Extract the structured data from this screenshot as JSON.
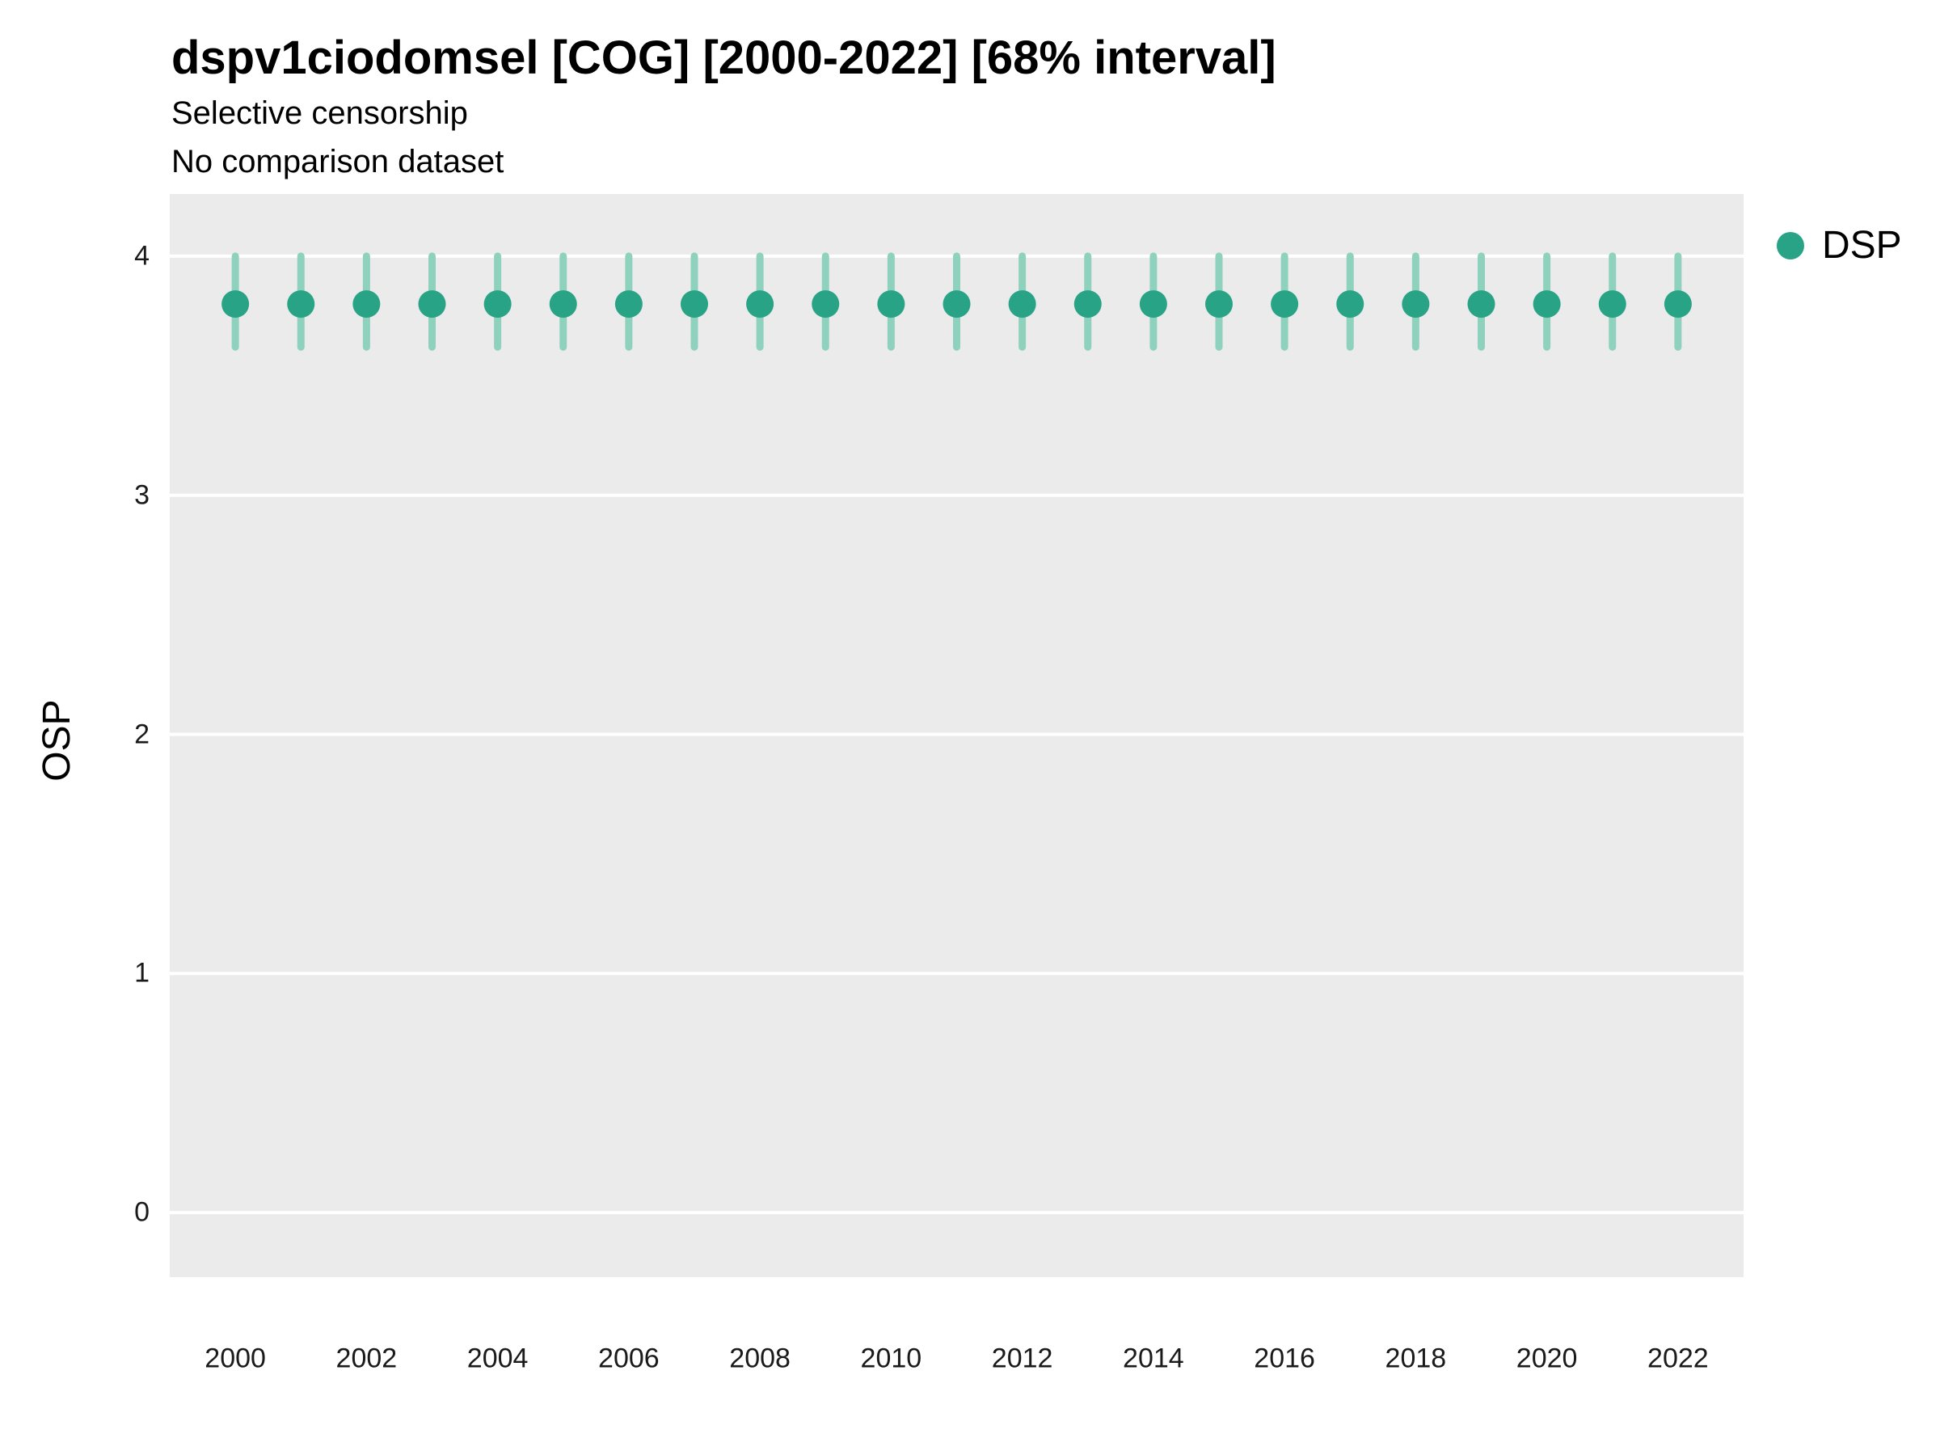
{
  "chart_data": {
    "type": "scatter",
    "title": "dspv1ciodomsel [COG] [2000-2022] [68% interval]",
    "subtitle": [
      "Selective censorship",
      "No comparison dataset"
    ],
    "xlabel": "",
    "ylabel": "OSP",
    "xlim": [
      1999,
      2023
    ],
    "ylim": [
      -0.27,
      4.26
    ],
    "x_ticks": [
      2000,
      2002,
      2004,
      2006,
      2008,
      2010,
      2012,
      2014,
      2016,
      2018,
      2020,
      2022
    ],
    "y_ticks": [
      0,
      1,
      2,
      3,
      4
    ],
    "grid": "horizontal-major",
    "legend_position": "right",
    "panel_bg": "#EBEBEB",
    "grid_color": "#FFFFFF",
    "interval_label": "68% interval",
    "series": [
      {
        "name": "DSP",
        "type": "point-interval",
        "color": "#29A386",
        "interval_color": "#8ED1BC",
        "x": [
          2000,
          2001,
          2002,
          2003,
          2004,
          2005,
          2006,
          2007,
          2008,
          2009,
          2010,
          2011,
          2012,
          2013,
          2014,
          2015,
          2016,
          2017,
          2018,
          2019,
          2020,
          2021,
          2022
        ],
        "y": [
          3.8,
          3.8,
          3.8,
          3.8,
          3.8,
          3.8,
          3.8,
          3.8,
          3.8,
          3.8,
          3.8,
          3.8,
          3.8,
          3.8,
          3.8,
          3.8,
          3.8,
          3.8,
          3.8,
          3.8,
          3.8,
          3.8,
          3.8
        ],
        "ymin": [
          3.62,
          3.62,
          3.62,
          3.62,
          3.62,
          3.62,
          3.62,
          3.62,
          3.62,
          3.62,
          3.62,
          3.62,
          3.62,
          3.62,
          3.62,
          3.62,
          3.62,
          3.62,
          3.62,
          3.62,
          3.62,
          3.62,
          3.62
        ],
        "ymax": [
          4.0,
          4.0,
          4.0,
          4.0,
          4.0,
          4.0,
          4.0,
          4.0,
          4.0,
          4.0,
          4.0,
          4.0,
          4.0,
          4.0,
          4.0,
          4.0,
          4.0,
          4.0,
          4.0,
          4.0,
          4.0,
          4.0,
          4.0
        ]
      }
    ]
  }
}
